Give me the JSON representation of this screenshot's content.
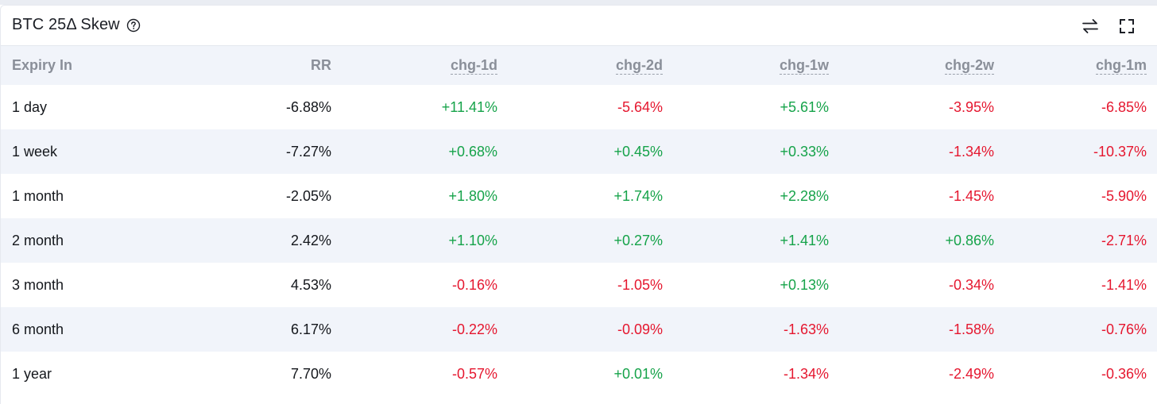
{
  "header": {
    "title": "BTC 25Δ Skew",
    "help_icon": "help-circle-icon",
    "swap_icon": "swap-arrows-icon",
    "expand_icon": "fullscreen-icon"
  },
  "colors": {
    "positive": "#16a34a",
    "negative": "#e5172f",
    "header_bg": "#f1f4fa"
  },
  "table": {
    "columns": [
      "Expiry In",
      "RR",
      "chg-1d",
      "chg-2d",
      "chg-1w",
      "chg-2w",
      "chg-1m"
    ],
    "rows": [
      [
        "1 day",
        "-6.88%",
        "+11.41%",
        "-5.64%",
        "+5.61%",
        "-3.95%",
        "-6.85%"
      ],
      [
        "1 week",
        "-7.27%",
        "+0.68%",
        "+0.45%",
        "+0.33%",
        "-1.34%",
        "-10.37%"
      ],
      [
        "1 month",
        "-2.05%",
        "+1.80%",
        "+1.74%",
        "+2.28%",
        "-1.45%",
        "-5.90%"
      ],
      [
        "2 month",
        "2.42%",
        "+1.10%",
        "+0.27%",
        "+1.41%",
        "+0.86%",
        "-2.71%"
      ],
      [
        "3 month",
        "4.53%",
        "-0.16%",
        "-1.05%",
        "+0.13%",
        "-0.34%",
        "-1.41%"
      ],
      [
        "6 month",
        "6.17%",
        "-0.22%",
        "-0.09%",
        "-1.63%",
        "-1.58%",
        "-0.76%"
      ],
      [
        "1 year",
        "7.70%",
        "-0.57%",
        "+0.01%",
        "-1.34%",
        "-2.49%",
        "-0.36%"
      ]
    ]
  }
}
